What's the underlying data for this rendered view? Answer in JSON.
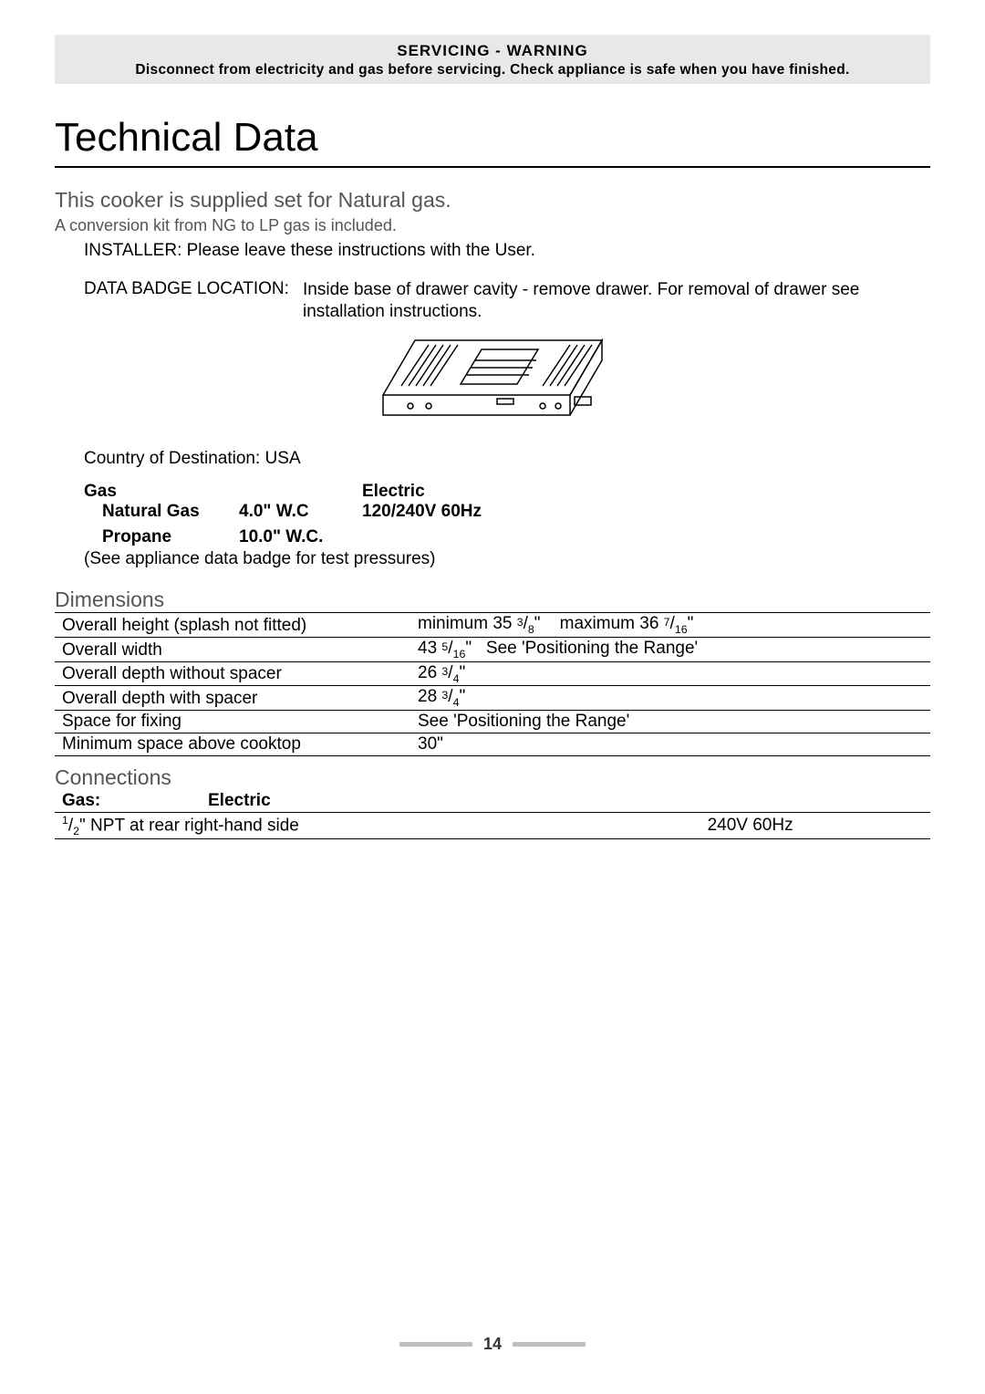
{
  "warning": {
    "title": "SERVICING - WARNING",
    "text": "Disconnect from electricity and gas before servicing. Check appliance is safe when you have finished."
  },
  "title": "Technical Data",
  "subtitle": "This cooker is supplied set for Natural gas.",
  "conversion_kit": "A conversion kit from NG to LP gas is included.",
  "installer_note": "INSTALLER: Please leave these instructions with the User.",
  "data_badge": {
    "label": "DATA BADGE LOCATION:",
    "value": "Inside base of drawer cavity - remove drawer. For removal of drawer see installation instructions."
  },
  "country": "Country of Destination: USA",
  "gas_electric": {
    "gas_header": "Gas",
    "electric_header": "Electric",
    "natural_gas_label": "Natural Gas",
    "natural_gas_value": "4.0\" W.C",
    "electric_value": "120/240V 60Hz",
    "propane_label": "Propane",
    "propane_value": "10.0\" W.C."
  },
  "test_pressures": "(See appliance data badge for test pressures)",
  "dimensions": {
    "heading": "Dimensions",
    "rows": [
      {
        "label": "Overall height (splash not fitted)",
        "value_html": "minimum 35 <span class='frac'>3</span>/<sub>8</sub>\"&nbsp;&nbsp;&nbsp;&nbsp;maximum 36 <span class='frac'>7</span>/<sub>16</sub>\""
      },
      {
        "label": "Overall width",
        "value_html": "43 <span class='frac'>5</span>/<sub>16</sub>\"&nbsp;&nbsp;&nbsp;See 'Positioning the Range'"
      },
      {
        "label": "Overall depth without spacer",
        "value_html": "26 <span class='frac'>3</span>/<sub>4</sub>\""
      },
      {
        "label": "Overall depth with spacer",
        "value_html": "28 <span class='frac'>3</span>/<sub>4</sub>\""
      },
      {
        "label": "Space for fixing",
        "value_html": "See 'Positioning the Range'"
      },
      {
        "label": "Minimum space above cooktop",
        "value_html": "30\""
      }
    ]
  },
  "connections": {
    "heading": "Connections",
    "gas_header": "Gas:",
    "electric_header": "Electric",
    "gas_value_html": "<sup>1</sup>/<sub>2</sub>\" NPT at rear right-hand side",
    "electric_value": "240V 60Hz"
  },
  "page_number": "14",
  "colors": {
    "banner_bg": "#e8e8e8",
    "rule": "#000000",
    "subheading": "#555555",
    "pagebar": "#bfbfbf"
  }
}
